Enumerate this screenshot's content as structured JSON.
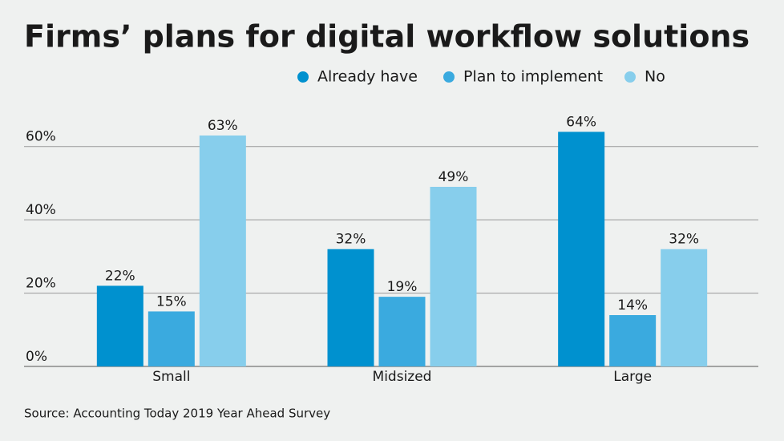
{
  "chart_data": {
    "type": "bar",
    "title": "Firms’ plans for digital workflow solutions",
    "source": "Source: Accounting Today 2019 Year Ahead Survey",
    "categories": [
      "Small",
      "Midsized",
      "Large"
    ],
    "series": [
      {
        "name": "Already have",
        "color": "#0091cf",
        "values": [
          22,
          32,
          64
        ],
        "value_labels": [
          "22%",
          "32%",
          "64%"
        ]
      },
      {
        "name": "Plan to implement",
        "color": "#3aaadf",
        "values": [
          15,
          19,
          14
        ],
        "value_labels": [
          "15%",
          "19%",
          "14%"
        ]
      },
      {
        "name": "No",
        "color": "#87ceec",
        "values": [
          63,
          49,
          32
        ],
        "value_labels": [
          "63%",
          "49%",
          "32%"
        ]
      }
    ],
    "ylim": [
      0,
      70
    ],
    "yticks": [
      {
        "value": 0,
        "label": "0%"
      },
      {
        "value": 20,
        "label": "20%"
      },
      {
        "value": 40,
        "label": "40%"
      },
      {
        "value": 60,
        "label": "60%"
      }
    ],
    "grid": true,
    "legend": "top-right"
  }
}
